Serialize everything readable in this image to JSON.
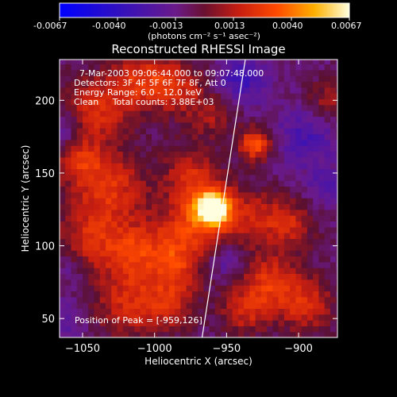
{
  "chart_data": {
    "type": "heatmap",
    "title": "Reconstructed RHESSI Image",
    "xlabel": "Heliocentric X (arcsec)",
    "ylabel": "Heliocentric Y (arcsec)",
    "xlim": [
      -1066,
      -873
    ],
    "ylim": [
      37,
      228
    ],
    "xticks": [
      -1050,
      -1000,
      -950,
      -900
    ],
    "yticks": [
      50,
      100,
      150,
      200
    ],
    "colorbar": {
      "ticks": [
        "-0.0067",
        "-0.0040",
        "-0.0013",
        "0.0013",
        "0.0040",
        "0.0067"
      ],
      "range": [
        -0.0067,
        0.0067
      ],
      "unit_label": "(photons cm⁻² s⁻¹ asec⁻²)"
    },
    "info_lines": [
      "7-Mar-2003 09:06:44.000 to 09:07:48.000",
      "Detectors: 3F 4F 5F 6F 7F 8F, Att 0",
      "Energy Range: 6.0 - 12.0 keV",
      "Clean     Total counts: 3.88E+03"
    ],
    "peak_label": "Position of Peak = [-959,126]",
    "peak_position": [
      -959,
      126
    ],
    "limb_line": [
      [
        -967,
        37
      ],
      [
        -937,
        228
      ]
    ],
    "blobs": [
      [
        -959,
        126,
        0.0067,
        7
      ],
      [
        -962,
        124,
        0.004,
        14
      ],
      [
        -930,
        170,
        0.0042,
        8
      ],
      [
        -1040,
        195,
        0.003,
        16
      ],
      [
        -1010,
        215,
        0.0028,
        14
      ],
      [
        -985,
        210,
        0.0026,
        14
      ],
      [
        -1030,
        140,
        0.003,
        18
      ],
      [
        -1052,
        158,
        0.0024,
        12
      ],
      [
        -1045,
        105,
        0.0026,
        16
      ],
      [
        -1015,
        95,
        0.0028,
        14
      ],
      [
        -985,
        105,
        0.0026,
        16
      ],
      [
        -975,
        150,
        0.0024,
        14
      ],
      [
        -1020,
        60,
        0.0026,
        16
      ],
      [
        -990,
        60,
        0.0024,
        14
      ],
      [
        -985,
        85,
        0.002,
        12
      ],
      [
        -930,
        120,
        0.0022,
        14
      ],
      [
        -905,
        115,
        0.0024,
        12
      ],
      [
        -880,
        200,
        0.002,
        10
      ],
      [
        -920,
        75,
        0.003,
        14
      ],
      [
        -895,
        60,
        0.0028,
        14
      ],
      [
        -938,
        55,
        0.0024,
        12
      ],
      [
        -960,
        190,
        0.0018,
        12
      ],
      [
        -940,
        215,
        -0.0025,
        12
      ],
      [
        -895,
        175,
        -0.002,
        14
      ],
      [
        -880,
        140,
        -0.0015,
        10
      ],
      [
        -950,
        90,
        -0.0015,
        8
      ],
      [
        -1062,
        50,
        -0.0012,
        10
      ],
      [
        -1062,
        180,
        -0.0018,
        8
      ],
      [
        -1058,
        85,
        -0.001,
        8
      ]
    ]
  }
}
